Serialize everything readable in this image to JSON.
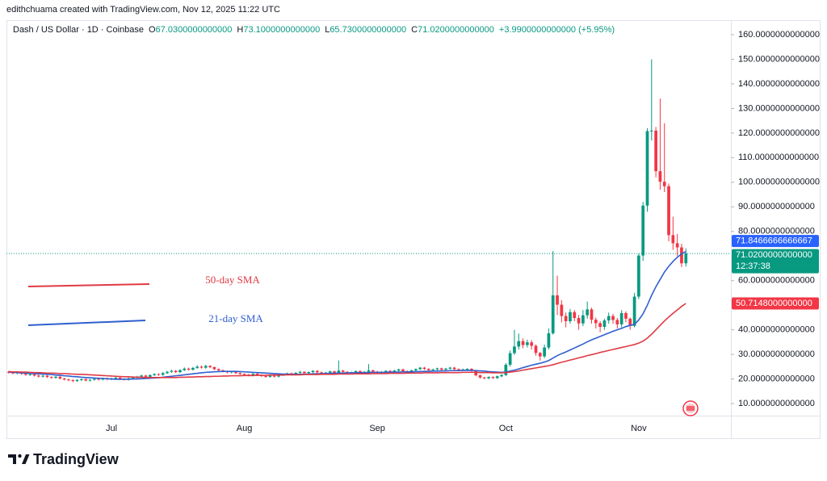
{
  "attribution": "edithchuama created with TradingView.com, Nov 12, 2025 11:22 UTC",
  "brand": "TradingView",
  "chart_data": {
    "type": "candlestick",
    "symbol": "Dash / US Dollar · 1D · Coinbase",
    "readout": [
      {
        "key": "O",
        "text": "67.0300000000000"
      },
      {
        "key": "H",
        "text": "73.1000000000000"
      },
      {
        "key": "L",
        "text": "65.7300000000000"
      },
      {
        "key": "C",
        "text": "71.0200000000000"
      }
    ],
    "change": "+3.9900000000000 (+5.95%)",
    "categories": [
      null,
      null,
      null,
      null,
      null,
      null,
      null,
      null,
      null,
      null,
      null,
      null,
      null,
      null,
      null,
      null,
      null,
      null,
      null,
      null,
      null,
      null,
      null,
      null,
      "Jul",
      null,
      null,
      null,
      null,
      null,
      null,
      null,
      null,
      null,
      null,
      null,
      null,
      null,
      null,
      null,
      null,
      null,
      null,
      null,
      null,
      null,
      null,
      null,
      null,
      null,
      null,
      null,
      null,
      null,
      null,
      "Aug",
      null,
      null,
      null,
      null,
      null,
      null,
      null,
      null,
      null,
      null,
      null,
      null,
      null,
      null,
      null,
      null,
      null,
      null,
      null,
      null,
      null,
      null,
      null,
      null,
      null,
      null,
      null,
      null,
      null,
      null,
      "Sep",
      null,
      null,
      null,
      null,
      null,
      null,
      null,
      null,
      null,
      null,
      null,
      null,
      null,
      null,
      null,
      null,
      null,
      null,
      null,
      null,
      null,
      null,
      null,
      null,
      null,
      null,
      null,
      null,
      null,
      "Oct",
      null,
      null,
      null,
      null,
      null,
      null,
      null,
      null,
      null,
      null,
      null,
      null,
      null,
      null,
      null,
      null,
      null,
      null,
      null,
      null,
      null,
      null,
      null,
      null,
      null,
      null,
      null,
      null,
      null,
      null,
      "Nov",
      null,
      null,
      null,
      null,
      null,
      null,
      null,
      null,
      null,
      null,
      null
    ],
    "open": [
      22.9,
      22.6,
      22.3,
      22.8,
      22.1,
      21.7,
      21.9,
      21.4,
      21.0,
      21.3,
      20.8,
      20.5,
      20.9,
      20.2,
      19.8,
      19.5,
      19.2,
      19.6,
      19.9,
      19.4,
      19.7,
      20.1,
      19.8,
      20.3,
      19.9,
      20.2,
      20.5,
      20.0,
      19.8,
      20.3,
      20.6,
      21.0,
      21.4,
      20.9,
      21.6,
      22.0,
      21.7,
      22.4,
      22.9,
      23.3,
      22.8,
      23.6,
      24.2,
      23.8,
      24.5,
      25.0,
      24.6,
      25.3,
      24.8,
      24.0,
      23.5,
      23.1,
      22.7,
      23.0,
      22.4,
      22.0,
      21.8,
      21.5,
      22.1,
      21.6,
      21.2,
      20.9,
      21.3,
      21.0,
      21.6,
      21.9,
      22.3,
      21.8,
      22.5,
      22.9,
      22.4,
      22.8,
      23.3,
      22.7,
      22.2,
      22.6,
      23.1,
      22.5,
      23.4,
      22.9,
      22.3,
      22.7,
      23.2,
      22.6,
      22.9,
      23.5,
      23.0,
      22.5,
      22.9,
      23.3,
      22.8,
      23.4,
      23.9,
      23.2,
      22.8,
      23.5,
      24.0,
      24.6,
      24.1,
      23.6,
      23.9,
      24.3,
      23.8,
      24.2,
      24.6,
      24.0,
      23.7,
      23.9,
      24.1,
      23.4,
      21.5,
      20.6,
      20.3,
      20.8,
      20.4,
      21.1,
      21.6,
      25.8,
      30.5,
      33.2,
      35.4,
      33.8,
      34.9,
      33.5,
      30.6,
      29.2,
      32.8,
      38.6,
      54.0,
      50.2,
      45.6,
      43.5,
      47.2,
      44.8,
      42.6,
      45.9,
      48.3,
      44.1,
      42.7,
      41.2,
      43.8,
      45.6,
      44.0,
      42.2,
      46.8,
      44.5,
      41.6,
      53.5,
      70.2,
      90.5,
      120.8,
      121.0,
      104.5,
      100.2,
      98.4,
      78.5,
      75.2,
      73.5,
      67.03
    ],
    "high": [
      23.3,
      23.0,
      23.2,
      23.1,
      22.5,
      22.3,
      22.2,
      21.8,
      21.7,
      21.6,
      21.1,
      21.2,
      21.2,
      20.5,
      20.1,
      19.9,
      19.9,
      20.2,
      20.2,
      20.0,
      20.4,
      20.4,
      20.6,
      20.6,
      20.5,
      20.9,
      20.8,
      20.3,
      20.6,
      21.0,
      21.3,
      21.8,
      21.7,
      21.9,
      22.4,
      22.3,
      22.8,
      23.3,
      23.8,
      23.7,
      24.0,
      24.7,
      24.6,
      24.9,
      25.6,
      25.4,
      25.8,
      25.6,
      25.1,
      24.3,
      23.9,
      23.4,
      23.3,
      23.3,
      22.7,
      22.3,
      22.1,
      22.4,
      22.4,
      21.9,
      21.5,
      21.6,
      21.6,
      21.9,
      22.2,
      22.6,
      22.6,
      22.8,
      23.3,
      23.2,
      23.1,
      23.6,
      23.6,
      23.0,
      22.9,
      23.4,
      23.4,
      27.5,
      23.7,
      23.2,
      23.0,
      23.5,
      23.5,
      23.2,
      26.0,
      23.8,
      23.3,
      23.2,
      23.6,
      23.6,
      23.7,
      24.2,
      24.2,
      23.5,
      23.8,
      24.3,
      24.9,
      24.9,
      24.4,
      24.2,
      24.6,
      24.6,
      24.5,
      24.9,
      24.9,
      24.3,
      24.2,
      24.4,
      24.4,
      23.7,
      21.8,
      20.9,
      21.1,
      21.1,
      21.4,
      22.0,
      26.5,
      31.5,
      40.0,
      38.5,
      36.5,
      36.0,
      35.8,
      34.0,
      31.0,
      34.0,
      40.5,
      72.0,
      62.0,
      52.0,
      47.0,
      48.5,
      48.0,
      46.0,
      48.0,
      51.5,
      49.0,
      45.0,
      43.5,
      44.5,
      47.0,
      46.5,
      44.8,
      48.0,
      47.5,
      45.0,
      55.0,
      71.0,
      92.0,
      122.0,
      150.0,
      122.5,
      134.0,
      124.0,
      99.5,
      86.0,
      79.0,
      75.0,
      73.1
    ],
    "low": [
      22.2,
      21.9,
      21.9,
      21.7,
      21.3,
      21.3,
      21.0,
      20.6,
      20.6,
      20.4,
      20.1,
      20.1,
      19.8,
      19.4,
      19.1,
      18.7,
      18.8,
      19.2,
      19.0,
      19.0,
      19.3,
      19.4,
      19.4,
      19.5,
      19.5,
      19.8,
      19.6,
      19.4,
      19.4,
      19.9,
      20.2,
      20.6,
      20.5,
      20.5,
      21.2,
      21.3,
      21.3,
      22.0,
      22.5,
      22.4,
      22.4,
      23.2,
      23.4,
      23.4,
      24.1,
      24.2,
      24.2,
      24.4,
      23.6,
      23.1,
      22.7,
      22.3,
      22.3,
      22.0,
      21.6,
      21.4,
      21.1,
      21.1,
      21.2,
      20.8,
      20.5,
      20.5,
      20.6,
      20.6,
      21.2,
      21.5,
      21.4,
      21.4,
      22.1,
      22.0,
      22.0,
      22.4,
      22.3,
      21.8,
      21.8,
      22.2,
      22.1,
      22.1,
      22.5,
      21.9,
      21.9,
      22.3,
      22.2,
      22.2,
      22.5,
      22.6,
      22.1,
      22.1,
      22.5,
      22.4,
      22.4,
      23.0,
      22.8,
      22.4,
      22.4,
      23.1,
      23.6,
      23.7,
      23.2,
      23.2,
      23.5,
      23.4,
      23.4,
      23.8,
      23.6,
      23.3,
      23.3,
      23.5,
      23.0,
      21.1,
      20.2,
      19.9,
      19.9,
      20.0,
      20.0,
      20.7,
      21.2,
      25.0,
      29.8,
      32.0,
      32.5,
      32.8,
      32.0,
      29.5,
      27.5,
      28.5,
      32.0,
      38.0,
      46.0,
      43.0,
      41.0,
      42.5,
      43.5,
      40.0,
      41.5,
      44.5,
      42.5,
      40.5,
      39.0,
      40.0,
      42.5,
      42.5,
      40.5,
      41.0,
      43.0,
      40.0,
      41.0,
      52.5,
      68.0,
      88.0,
      117.0,
      102.0,
      97.0,
      96.0,
      76.0,
      72.5,
      70.0,
      65.5,
      65.73
    ],
    "close": [
      22.6,
      22.3,
      22.8,
      22.1,
      21.7,
      21.9,
      21.4,
      21.0,
      21.3,
      20.8,
      20.5,
      20.9,
      20.2,
      19.8,
      19.5,
      19.2,
      19.6,
      19.9,
      19.4,
      19.7,
      20.1,
      19.8,
      20.3,
      19.9,
      20.2,
      20.5,
      20.0,
      19.8,
      20.3,
      20.6,
      21.0,
      21.4,
      20.9,
      21.6,
      22.0,
      21.7,
      22.4,
      22.9,
      23.3,
      22.8,
      23.6,
      24.2,
      23.8,
      24.5,
      25.0,
      24.6,
      25.3,
      24.8,
      24.0,
      23.5,
      23.1,
      22.7,
      23.0,
      22.4,
      22.0,
      21.8,
      21.5,
      22.1,
      21.6,
      21.2,
      20.9,
      21.3,
      21.0,
      21.6,
      21.9,
      22.3,
      21.8,
      22.5,
      22.9,
      22.4,
      22.8,
      23.3,
      22.7,
      22.2,
      22.6,
      23.1,
      22.5,
      23.4,
      22.9,
      22.3,
      22.7,
      23.2,
      22.6,
      22.9,
      23.5,
      23.0,
      22.5,
      22.9,
      23.3,
      22.8,
      23.4,
      23.9,
      23.2,
      22.8,
      23.5,
      24.0,
      24.6,
      24.1,
      23.6,
      23.9,
      24.3,
      23.8,
      24.2,
      24.6,
      24.0,
      23.7,
      23.9,
      24.1,
      23.4,
      21.5,
      20.6,
      20.3,
      20.8,
      20.4,
      21.1,
      21.6,
      25.8,
      30.5,
      33.2,
      35.4,
      33.8,
      34.9,
      33.5,
      30.6,
      29.2,
      32.8,
      38.6,
      54.0,
      50.2,
      45.6,
      43.5,
      47.2,
      44.8,
      42.6,
      45.9,
      48.3,
      44.1,
      42.7,
      41.2,
      43.8,
      45.6,
      44.0,
      42.2,
      46.8,
      44.5,
      41.6,
      53.5,
      70.2,
      90.5,
      120.8,
      121.0,
      104.5,
      100.2,
      98.4,
      78.5,
      75.2,
      73.5,
      67.03,
      71.02
    ],
    "up_color": "#089981",
    "down_color": "#f23645",
    "series": [
      {
        "name": "21-day SMA",
        "color": "#2f5fd0",
        "values": [
          22.8,
          22.7,
          22.6,
          22.5,
          22.4,
          22.3,
          22.2,
          22.1,
          22.0,
          21.9,
          21.8,
          21.6,
          21.5,
          21.3,
          21.2,
          21.0,
          20.9,
          20.7,
          20.6,
          20.5,
          20.4,
          20.3,
          20.2,
          20.1,
          20.0,
          19.9,
          19.9,
          19.9,
          19.9,
          20.0,
          20.0,
          20.1,
          20.2,
          20.3,
          20.4,
          20.5,
          20.7,
          20.9,
          21.1,
          21.3,
          21.5,
          21.7,
          21.9,
          22.1,
          22.3,
          22.5,
          22.7,
          22.8,
          22.9,
          23.0,
          23.1,
          23.1,
          23.1,
          23.1,
          23.0,
          22.9,
          22.8,
          22.7,
          22.6,
          22.5,
          22.4,
          22.3,
          22.2,
          22.1,
          22.0,
          22.0,
          21.9,
          21.9,
          21.9,
          22.0,
          22.0,
          22.1,
          22.1,
          22.2,
          22.2,
          22.3,
          22.3,
          22.4,
          22.4,
          22.5,
          22.5,
          22.5,
          22.6,
          22.6,
          22.6,
          22.7,
          22.7,
          22.7,
          22.7,
          22.8,
          22.8,
          22.8,
          22.9,
          22.9,
          22.9,
          23.0,
          23.0,
          23.1,
          23.1,
          23.2,
          23.2,
          23.3,
          23.3,
          23.4,
          23.4,
          23.4,
          23.5,
          23.5,
          23.5,
          23.4,
          23.3,
          23.2,
          23.0,
          22.9,
          22.8,
          22.7,
          22.8,
          23.2,
          23.6,
          24.1,
          24.6,
          25.1,
          25.6,
          26.0,
          26.4,
          26.9,
          27.5,
          28.5,
          29.5,
          30.3,
          31.0,
          31.8,
          32.6,
          33.4,
          34.2,
          35.1,
          35.9,
          36.6,
          37.3,
          38.0,
          38.7,
          39.4,
          40.0,
          40.6,
          41.3,
          41.8,
          42.2,
          44.0,
          46.5,
          50.0,
          54.0,
          57.5,
          60.5,
          63.5,
          65.8,
          67.8,
          69.5,
          70.8,
          71.8466666666667
        ]
      },
      {
        "name": "50-day SMA",
        "color": "#e03a44",
        "values": [
          23.0,
          22.9,
          22.9,
          22.8,
          22.8,
          22.7,
          22.6,
          22.6,
          22.5,
          22.4,
          22.4,
          22.3,
          22.2,
          22.2,
          22.1,
          22.0,
          21.9,
          21.9,
          21.8,
          21.7,
          21.6,
          21.5,
          21.4,
          21.3,
          21.2,
          21.1,
          21.0,
          20.9,
          20.9,
          20.8,
          20.7,
          20.7,
          20.6,
          20.6,
          20.6,
          20.6,
          20.6,
          20.6,
          20.6,
          20.6,
          20.7,
          20.7,
          20.8,
          20.8,
          20.9,
          20.9,
          21.0,
          21.0,
          21.1,
          21.1,
          21.2,
          21.2,
          21.3,
          21.3,
          21.3,
          21.4,
          21.4,
          21.4,
          21.5,
          21.5,
          21.5,
          21.6,
          21.6,
          21.6,
          21.6,
          21.7,
          21.7,
          21.7,
          21.7,
          21.8,
          21.8,
          21.8,
          21.8,
          21.9,
          21.9,
          21.9,
          21.9,
          22.0,
          22.0,
          22.0,
          22.0,
          22.1,
          22.1,
          22.1,
          22.1,
          22.2,
          22.2,
          22.2,
          22.2,
          22.3,
          22.3,
          22.3,
          22.3,
          22.4,
          22.4,
          22.4,
          22.4,
          22.5,
          22.5,
          22.5,
          22.5,
          22.6,
          22.6,
          22.6,
          22.6,
          22.6,
          22.7,
          22.7,
          22.7,
          22.7,
          22.6,
          22.6,
          22.6,
          22.5,
          22.5,
          22.5,
          22.6,
          22.8,
          23.0,
          23.3,
          23.6,
          23.9,
          24.2,
          24.5,
          24.8,
          25.1,
          25.4,
          25.8,
          26.3,
          26.8,
          27.2,
          27.7,
          28.1,
          28.6,
          29.0,
          29.5,
          29.9,
          30.3,
          30.8,
          31.2,
          31.6,
          32.0,
          32.4,
          32.8,
          33.2,
          33.6,
          34.0,
          34.6,
          35.4,
          36.6,
          38.2,
          40.0,
          41.8,
          43.6,
          45.2,
          46.7,
          48.1,
          49.5,
          50.7148
        ]
      }
    ],
    "ylim": [
      5.1,
      165.9
    ],
    "yticks": [
      {
        "value": 160,
        "label": "160.0000000000000"
      },
      {
        "value": 150,
        "label": "150.0000000000000"
      },
      {
        "value": 140,
        "label": "140.0000000000000"
      },
      {
        "value": 130,
        "label": "130.0000000000000"
      },
      {
        "value": 120,
        "label": "120.0000000000000"
      },
      {
        "value": 110,
        "label": "110.0000000000000"
      },
      {
        "value": 100,
        "label": "100.0000000000000"
      },
      {
        "value": 90,
        "label": "90.0000000000000"
      },
      {
        "value": 80,
        "label": "80.0000000000000"
      },
      {
        "value": 60,
        "label": "60.0000000000000"
      },
      {
        "value": 40,
        "label": "40.0000000000000"
      },
      {
        "value": 30,
        "label": "30.0000000000000"
      },
      {
        "value": 20,
        "label": "20.0000000000000"
      },
      {
        "value": 10,
        "label": "10.0000000000000"
      }
    ],
    "grid": false,
    "price_labels": [
      {
        "value": 71.8466666666667,
        "label": "71.8466666666667",
        "color": "#2962ff"
      },
      {
        "value": 71.02,
        "label": "71.0200000000000",
        "color": "#089981"
      },
      {
        "value": 50.7148,
        "label": "50.7148000000000",
        "color": "#f23645"
      }
    ],
    "countdown": "12:37:38"
  }
}
